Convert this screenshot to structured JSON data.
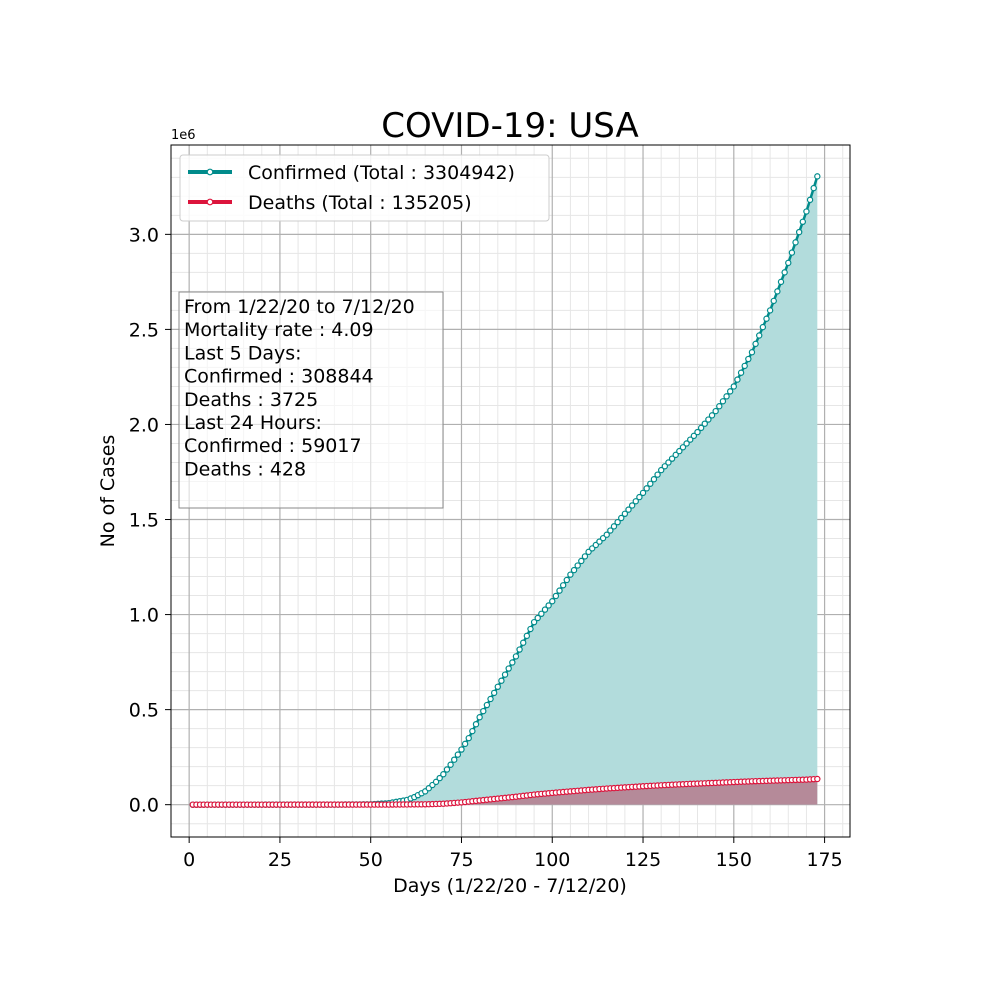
{
  "chart_data": {
    "type": "line",
    "title": "COVID-19: USA",
    "xlabel": "Days (1/22/20 - 7/12/20)",
    "ylabel": "No of Cases",
    "y_offset_label": "1e6",
    "xlim": [
      -5,
      182
    ],
    "ylim": [
      -0.17,
      3.47
    ],
    "x_ticks": [
      0,
      25,
      50,
      75,
      100,
      125,
      150,
      175
    ],
    "x_tick_labels": [
      "0",
      "25",
      "50",
      "75",
      "100",
      "125",
      "150",
      "175"
    ],
    "y_ticks": [
      0.0,
      0.5,
      1.0,
      1.5,
      2.0,
      2.5,
      3.0
    ],
    "y_tick_labels": [
      "0.0",
      "0.5",
      "1.0",
      "1.5",
      "2.0",
      "2.5",
      "3.0"
    ],
    "grid": true,
    "minor_grid": true,
    "legend_position": "top-left",
    "x_start": 1,
    "x_end": 173,
    "series": [
      {
        "name": "Confirmed (Total : 3304942)",
        "color": "#008b8b",
        "fill": "#b2dcdc",
        "anchors": [
          [
            1,
            0
          ],
          [
            40,
            0.0005
          ],
          [
            50,
            0.002
          ],
          [
            55,
            0.008
          ],
          [
            60,
            0.025
          ],
          [
            62,
            0.04
          ],
          [
            65,
            0.07
          ],
          [
            68,
            0.12
          ],
          [
            70,
            0.16
          ],
          [
            72,
            0.21
          ],
          [
            75,
            0.29
          ],
          [
            77,
            0.35
          ],
          [
            80,
            0.46
          ],
          [
            85,
            0.62
          ],
          [
            90,
            0.78
          ],
          [
            95,
            0.96
          ],
          [
            100,
            1.07
          ],
          [
            105,
            1.21
          ],
          [
            110,
            1.33
          ],
          [
            115,
            1.42
          ],
          [
            120,
            1.53
          ],
          [
            125,
            1.64
          ],
          [
            130,
            1.76
          ],
          [
            135,
            1.86
          ],
          [
            140,
            1.96
          ],
          [
            145,
            2.07
          ],
          [
            150,
            2.2
          ],
          [
            155,
            2.38
          ],
          [
            160,
            2.6
          ],
          [
            165,
            2.85
          ],
          [
            170,
            3.12
          ],
          [
            173,
            3.304942
          ]
        ]
      },
      {
        "name": "Deaths (Total : 135205)",
        "color": "#dc143c",
        "fill": "#b58a99",
        "anchors": [
          [
            1,
            0
          ],
          [
            55,
            0.0005
          ],
          [
            65,
            0.002
          ],
          [
            70,
            0.005
          ],
          [
            75,
            0.012
          ],
          [
            80,
            0.022
          ],
          [
            85,
            0.032
          ],
          [
            90,
            0.042
          ],
          [
            95,
            0.053
          ],
          [
            100,
            0.062
          ],
          [
            105,
            0.07
          ],
          [
            110,
            0.078
          ],
          [
            115,
            0.085
          ],
          [
            120,
            0.091
          ],
          [
            125,
            0.097
          ],
          [
            130,
            0.102
          ],
          [
            135,
            0.107
          ],
          [
            140,
            0.111
          ],
          [
            145,
            0.115
          ],
          [
            150,
            0.119
          ],
          [
            155,
            0.123
          ],
          [
            160,
            0.126
          ],
          [
            165,
            0.129
          ],
          [
            170,
            0.132
          ],
          [
            173,
            0.135205
          ]
        ]
      }
    ],
    "annotation_lines": [
      "From 1/22/20 to 7/12/20",
      "Mortality rate : 4.09",
      "Last 5 Days:",
      "Confirmed : 308844",
      "Deaths : 3725",
      "Last 24 Hours:",
      "Confirmed : 59017",
      "Deaths : 428"
    ]
  }
}
